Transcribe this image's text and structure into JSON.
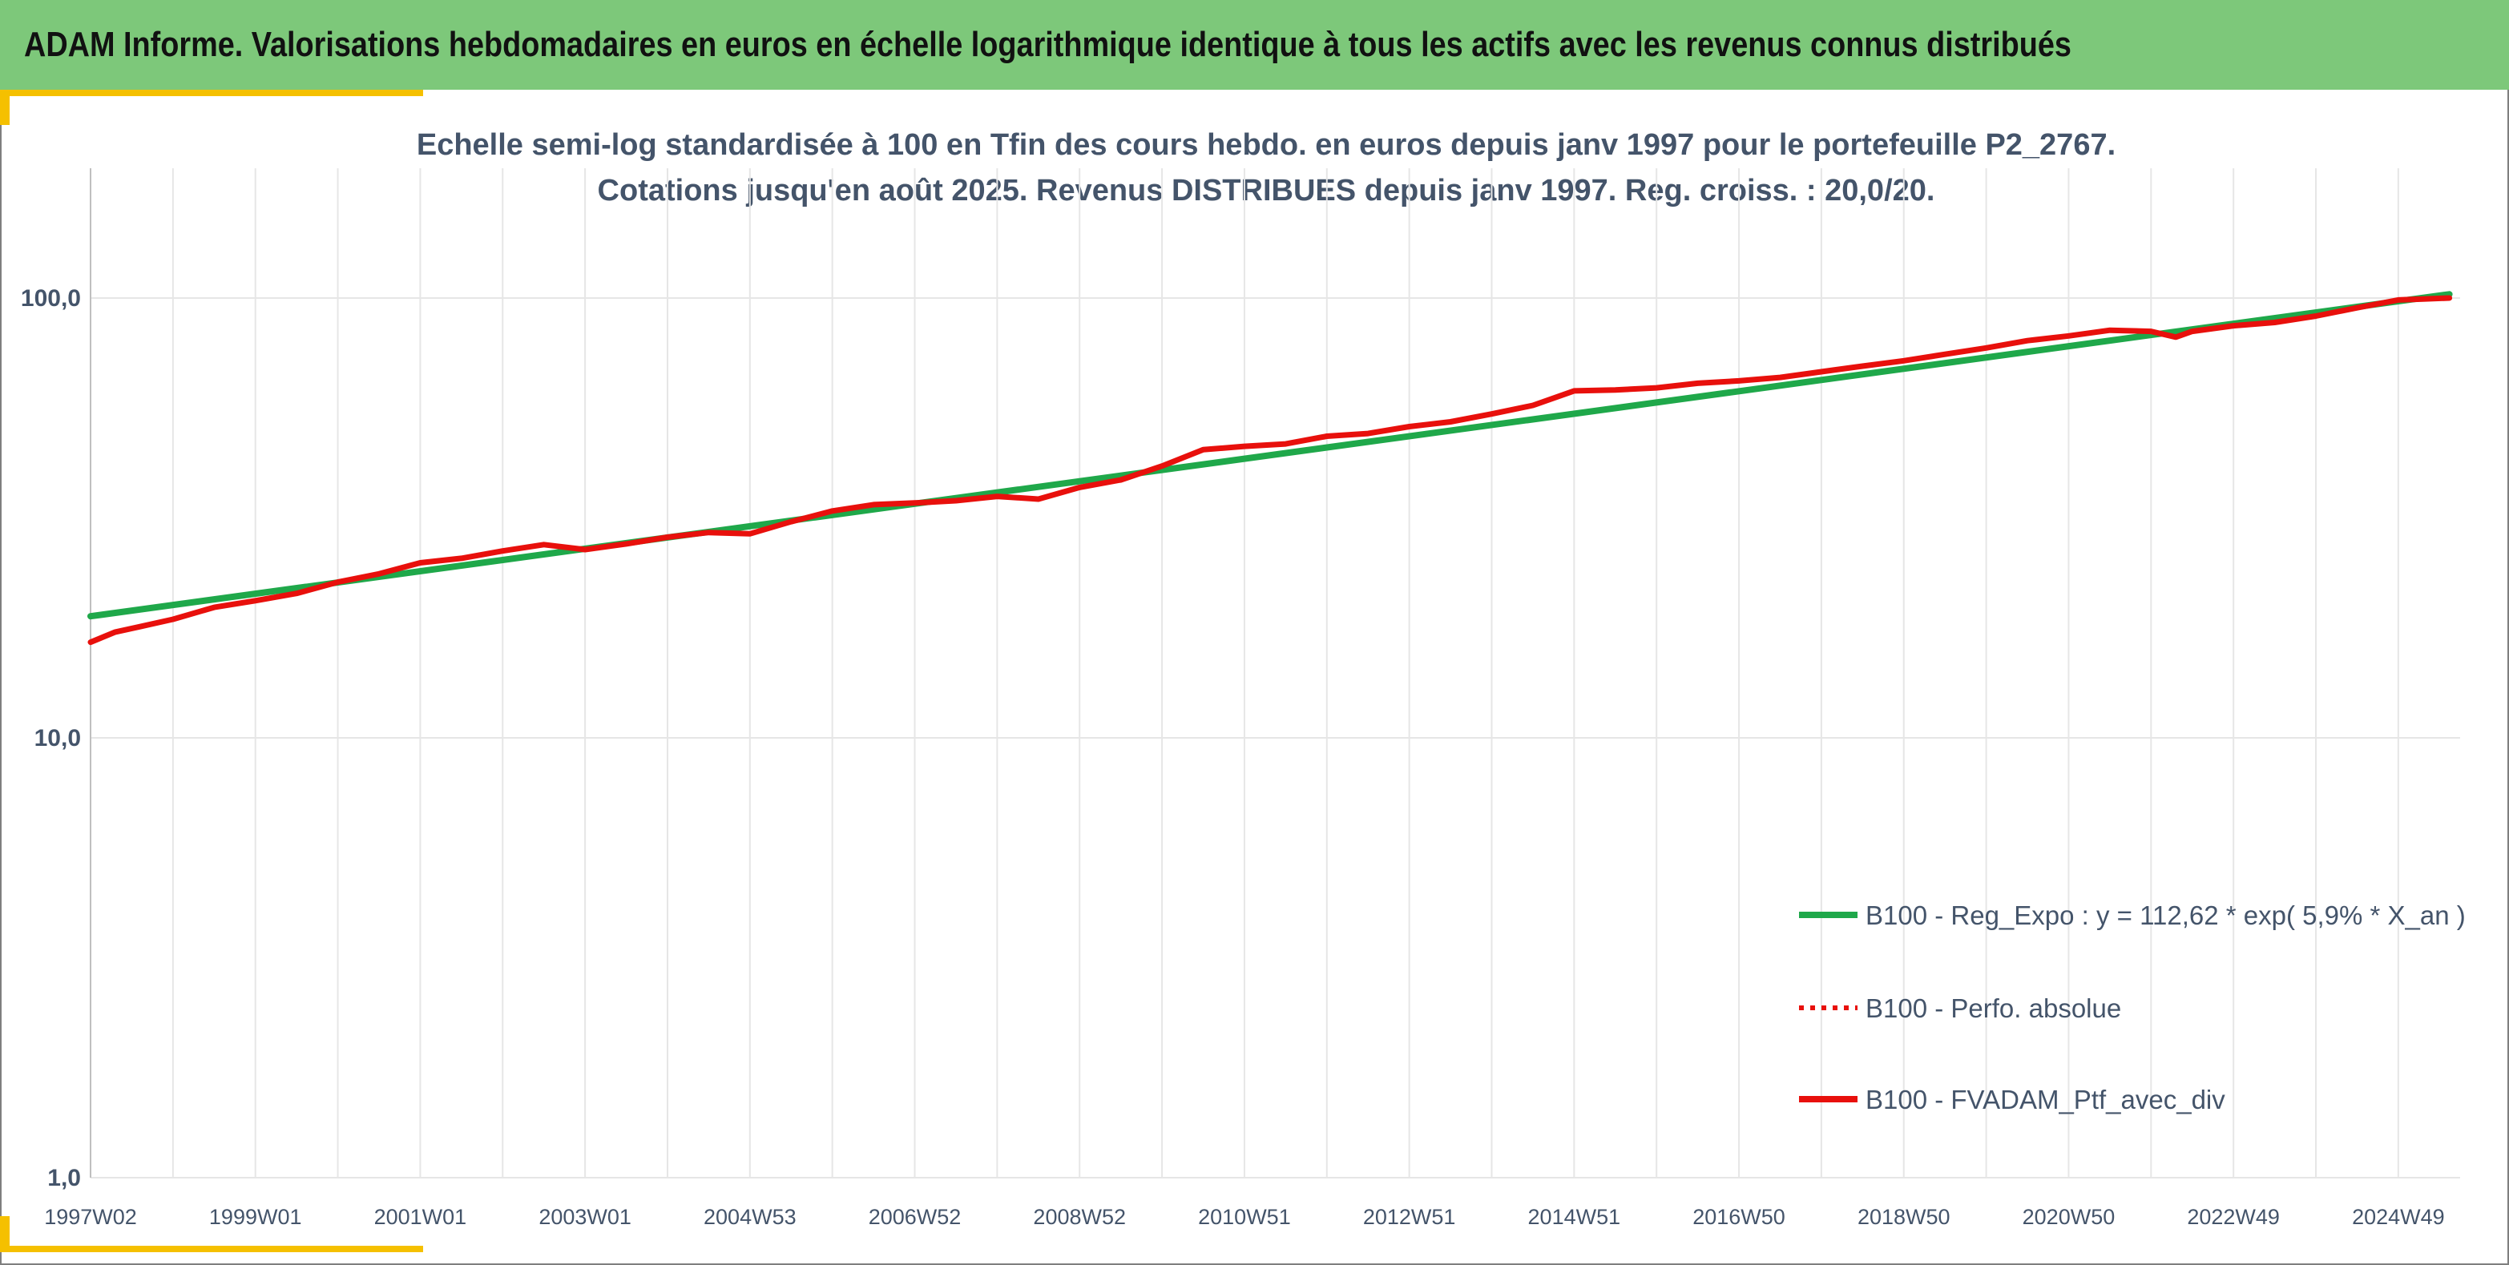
{
  "header": {
    "title": "ADAM Informe. Valorisations hebdomadaires en euros en échelle logarithmique identique à tous les actifs avec les revenus connus distribués"
  },
  "colors": {
    "header_bg": "#7dc87a",
    "accent": "#f5c000",
    "regression": "#1fa84a",
    "portfolio": "#e8100c",
    "text": "#44546a",
    "grid": "#e6e6e6"
  },
  "chart_data": {
    "type": "line",
    "title": "Echelle semi-log standardisée à 100 en Tfin des cours hebdo. en euros depuis janv 1997 pour le portefeuille P2_2767.",
    "subtitle": "Cotations jusqu'en août 2025. Revenus DISTRIBUES depuis janv 1997. Reg. croiss. : 20,0/20.",
    "y_scale": "log",
    "ylim": [
      1,
      200
    ],
    "y_ticks": [
      "1,0",
      "10,0",
      "100,0"
    ],
    "y_tick_values": [
      1,
      10,
      100
    ],
    "x_tick_labels": [
      "1997W02",
      "1999W01",
      "2001W01",
      "2003W01",
      "2004W53",
      "2006W52",
      "2008W52",
      "2010W51",
      "2012W51",
      "2014W51",
      "2016W50",
      "2018W50",
      "2020W50",
      "2022W49",
      "2024W49"
    ],
    "x_tick_years": [
      1997.0,
      1999.0,
      2001.0,
      2003.0,
      2005.0,
      2007.0,
      2009.0,
      2011.0,
      2013.0,
      2015.0,
      2017.0,
      2019.0,
      2021.0,
      2023.0,
      2025.0
    ],
    "xlim": [
      1997.0,
      2025.75
    ],
    "grid": true,
    "legend_position": "bottom-right",
    "series": [
      {
        "name": "B100 - Reg_Expo : y = 112,62 * exp( 5,9% *  X_an )",
        "style": "solid",
        "color": "#1fa84a",
        "x": [
          1997.0,
          2025.62
        ],
        "y": [
          18.9,
          102.0
        ]
      },
      {
        "name": "B100 - Perfo. absolue",
        "style": "dotted",
        "color": "#e8100c",
        "x": [],
        "y": []
      },
      {
        "name": "B100 - FVADAM_Ptf_avec_div",
        "style": "solid",
        "color": "#e8100c",
        "x": [
          1997.0,
          1997.3,
          1997.6,
          1998.0,
          1998.5,
          1999.0,
          1999.5,
          2000.0,
          2000.5,
          2001.0,
          2001.5,
          2002.0,
          2002.5,
          2003.0,
          2003.5,
          2004.0,
          2004.5,
          2005.0,
          2005.5,
          2006.0,
          2006.5,
          2007.0,
          2007.5,
          2008.0,
          2008.5,
          2009.0,
          2009.5,
          2010.0,
          2010.5,
          2011.0,
          2011.5,
          2012.0,
          2012.5,
          2013.0,
          2013.5,
          2014.0,
          2014.5,
          2015.0,
          2015.5,
          2016.0,
          2016.5,
          2017.0,
          2017.5,
          2018.0,
          2018.5,
          2019.0,
          2019.5,
          2020.0,
          2020.5,
          2021.0,
          2021.5,
          2022.0,
          2022.3,
          2022.5,
          2023.0,
          2023.5,
          2024.0,
          2024.5,
          2025.0,
          2025.3,
          2025.62
        ],
        "y": [
          16.5,
          17.4,
          17.9,
          18.6,
          19.8,
          20.5,
          21.3,
          22.6,
          23.6,
          25.0,
          25.6,
          26.6,
          27.5,
          26.8,
          27.6,
          28.6,
          29.3,
          29.1,
          31.0,
          32.8,
          33.9,
          34.2,
          34.6,
          35.4,
          34.9,
          37.1,
          38.6,
          41.5,
          45.2,
          46.0,
          46.6,
          48.5,
          49.2,
          51.0,
          52.3,
          54.5,
          57.0,
          61.5,
          61.8,
          62.5,
          64.0,
          64.8,
          66.0,
          68.0,
          70.0,
          72.0,
          74.5,
          77.0,
          80.0,
          82.0,
          84.5,
          84.0,
          81.5,
          84.0,
          86.5,
          88.0,
          91.0,
          95.0,
          99.0,
          99.5,
          100.0
        ]
      }
    ]
  }
}
